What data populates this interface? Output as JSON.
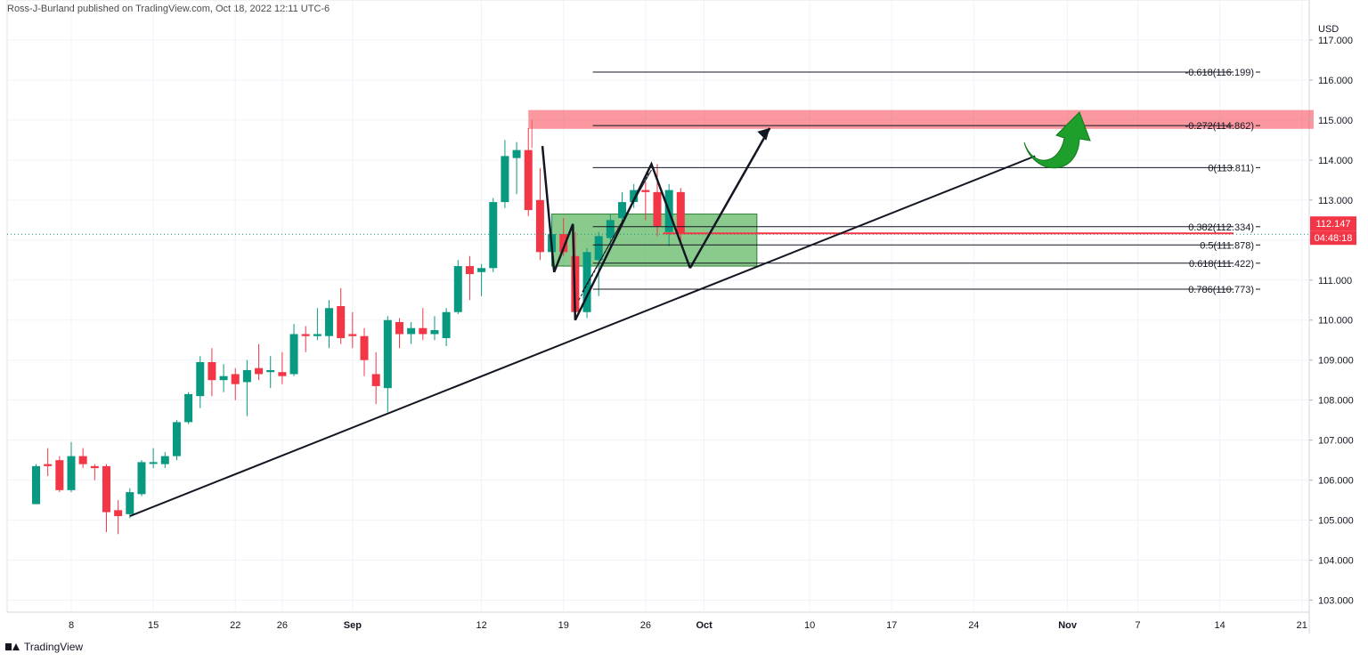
{
  "header": {
    "publisher_text": "Ross-J-Burland published on TradingView.com, Oct 18, 2022 12:11 UTC-6"
  },
  "footer": {
    "brand": "TradingView"
  },
  "chart_data": {
    "type": "candlestick",
    "currency_label": "USD",
    "ylim": [
      102.7,
      117.6
    ],
    "y_ticks": [
      "117.000",
      "116.000",
      "115.000",
      "114.000",
      "113.000",
      "112.000",
      "111.000",
      "110.000",
      "109.000",
      "108.000",
      "107.000",
      "106.000",
      "105.000",
      "104.000",
      "103.000"
    ],
    "x_ticks": [
      {
        "label": "8",
        "day": 0
      },
      {
        "label": "15",
        "day": 7
      },
      {
        "label": "22",
        "day": 14
      },
      {
        "label": "26",
        "day": 18
      },
      {
        "label": "Sep",
        "day": 24
      },
      {
        "label": "12",
        "day": 35
      },
      {
        "label": "19",
        "day": 42
      },
      {
        "label": "26",
        "day": 49
      },
      {
        "label": "Oct",
        "day": 54
      },
      {
        "label": "10",
        "day": 63
      },
      {
        "label": "17",
        "day": 70
      },
      {
        "label": "24",
        "day": 77
      },
      {
        "label": "Nov",
        "day": 85
      },
      {
        "label": "7",
        "day": 91
      },
      {
        "label": "14",
        "day": 98
      },
      {
        "label": "21",
        "day": 105
      }
    ],
    "candles": [
      {
        "d": -3,
        "o": 105.4,
        "h": 106.4,
        "l": 105.4,
        "c": 106.35
      },
      {
        "d": -2,
        "o": 106.4,
        "h": 106.8,
        "l": 106.1,
        "c": 106.35
      },
      {
        "d": -1,
        "o": 106.5,
        "h": 106.6,
        "l": 105.7,
        "c": 105.75
      },
      {
        "d": 0,
        "o": 105.75,
        "h": 106.95,
        "l": 105.7,
        "c": 106.6
      },
      {
        "d": 1,
        "o": 106.6,
        "h": 106.8,
        "l": 106.3,
        "c": 106.4
      },
      {
        "d": 2,
        "o": 106.35,
        "h": 106.4,
        "l": 106.0,
        "c": 106.3
      },
      {
        "d": 3,
        "o": 106.35,
        "h": 106.4,
        "l": 104.7,
        "c": 105.2
      },
      {
        "d": 4,
        "o": 105.25,
        "h": 105.5,
        "l": 104.65,
        "c": 105.1
      },
      {
        "d": 5,
        "o": 105.15,
        "h": 105.8,
        "l": 105.05,
        "c": 105.7
      },
      {
        "d": 6,
        "o": 105.65,
        "h": 106.5,
        "l": 105.6,
        "c": 106.45
      },
      {
        "d": 7,
        "o": 106.45,
        "h": 106.8,
        "l": 106.3,
        "c": 106.45
      },
      {
        "d": 8,
        "o": 106.4,
        "h": 106.7,
        "l": 106.3,
        "c": 106.6
      },
      {
        "d": 9,
        "o": 106.6,
        "h": 107.5,
        "l": 106.5,
        "c": 107.45
      },
      {
        "d": 10,
        "o": 107.45,
        "h": 108.2,
        "l": 107.4,
        "c": 108.15
      },
      {
        "d": 11,
        "o": 108.1,
        "h": 109.1,
        "l": 107.8,
        "c": 108.95
      },
      {
        "d": 12,
        "o": 108.95,
        "h": 109.3,
        "l": 108.1,
        "c": 108.5
      },
      {
        "d": 13,
        "o": 108.5,
        "h": 108.9,
        "l": 108.2,
        "c": 108.6
      },
      {
        "d": 14,
        "o": 108.65,
        "h": 108.8,
        "l": 108.0,
        "c": 108.4
      },
      {
        "d": 15,
        "o": 108.45,
        "h": 109.0,
        "l": 107.6,
        "c": 108.75
      },
      {
        "d": 16,
        "o": 108.8,
        "h": 109.4,
        "l": 108.5,
        "c": 108.65
      },
      {
        "d": 17,
        "o": 108.7,
        "h": 109.1,
        "l": 108.3,
        "c": 108.75
      },
      {
        "d": 18,
        "o": 108.7,
        "h": 109.2,
        "l": 108.4,
        "c": 108.6
      },
      {
        "d": 19,
        "o": 108.65,
        "h": 109.9,
        "l": 108.6,
        "c": 109.65
      },
      {
        "d": 20,
        "o": 109.65,
        "h": 109.85,
        "l": 109.2,
        "c": 109.6
      },
      {
        "d": 21,
        "o": 109.6,
        "h": 110.3,
        "l": 109.5,
        "c": 109.65
      },
      {
        "d": 22,
        "o": 109.6,
        "h": 110.5,
        "l": 109.3,
        "c": 110.3
      },
      {
        "d": 23,
        "o": 110.35,
        "h": 110.8,
        "l": 109.4,
        "c": 109.55
      },
      {
        "d": 24,
        "o": 109.65,
        "h": 110.2,
        "l": 109.3,
        "c": 109.6
      },
      {
        "d": 25,
        "o": 109.6,
        "h": 109.8,
        "l": 108.6,
        "c": 109.0
      },
      {
        "d": 26,
        "o": 108.65,
        "h": 109.2,
        "l": 107.9,
        "c": 108.35
      },
      {
        "d": 27,
        "o": 108.3,
        "h": 110.1,
        "l": 107.7,
        "c": 110.0
      },
      {
        "d": 28,
        "o": 109.95,
        "h": 110.05,
        "l": 109.3,
        "c": 109.65
      },
      {
        "d": 29,
        "o": 109.65,
        "h": 109.95,
        "l": 109.4,
        "c": 109.8
      },
      {
        "d": 30,
        "o": 109.8,
        "h": 110.3,
        "l": 109.5,
        "c": 109.65
      },
      {
        "d": 31,
        "o": 109.65,
        "h": 110.1,
        "l": 109.5,
        "c": 109.75
      },
      {
        "d": 32,
        "o": 109.55,
        "h": 110.3,
        "l": 109.35,
        "c": 110.2
      },
      {
        "d": 33,
        "o": 110.2,
        "h": 111.5,
        "l": 110.15,
        "c": 111.35
      },
      {
        "d": 34,
        "o": 111.35,
        "h": 111.6,
        "l": 110.5,
        "c": 111.15
      },
      {
        "d": 35,
        "o": 111.2,
        "h": 111.4,
        "l": 110.6,
        "c": 111.3
      },
      {
        "d": 36,
        "o": 111.3,
        "h": 113.05,
        "l": 111.2,
        "c": 112.95
      },
      {
        "d": 37,
        "o": 112.95,
        "h": 114.5,
        "l": 112.8,
        "c": 114.1
      },
      {
        "d": 38,
        "o": 114.05,
        "h": 114.45,
        "l": 113.15,
        "c": 114.25
      },
      {
        "d": 39,
        "o": 114.25,
        "h": 114.8,
        "l": 112.6,
        "c": 112.75
      },
      {
        "d": 40,
        "o": 113.0,
        "h": 113.8,
        "l": 111.5,
        "c": 111.7
      },
      {
        "d": 41,
        "o": 111.7,
        "h": 112.6,
        "l": 111.4,
        "c": 112.15
      },
      {
        "d": 42,
        "o": 112.15,
        "h": 112.55,
        "l": 111.6,
        "c": 111.7
      },
      {
        "d": 43,
        "o": 111.6,
        "h": 112.2,
        "l": 110.0,
        "c": 110.2
      },
      {
        "d": 44,
        "o": 110.2,
        "h": 111.8,
        "l": 110.05,
        "c": 111.7
      },
      {
        "d": 45,
        "o": 111.5,
        "h": 112.2,
        "l": 110.6,
        "c": 112.1
      },
      {
        "d": 46,
        "o": 112.05,
        "h": 112.65,
        "l": 111.75,
        "c": 112.5
      },
      {
        "d": 47,
        "o": 112.55,
        "h": 113.2,
        "l": 112.45,
        "c": 112.95
      },
      {
        "d": 48,
        "o": 112.95,
        "h": 113.4,
        "l": 112.8,
        "c": 113.25
      },
      {
        "d": 49,
        "o": 113.25,
        "h": 113.45,
        "l": 112.5,
        "c": 113.2
      },
      {
        "d": 50,
        "o": 113.2,
        "h": 113.9,
        "l": 112.1,
        "c": 112.35
      },
      {
        "d": 51,
        "o": 112.2,
        "h": 113.4,
        "l": 111.85,
        "c": 113.25
      },
      {
        "d": 52,
        "o": 113.2,
        "h": 113.3,
        "l": 111.9,
        "c": 112.15
      }
    ],
    "current_price": {
      "value": "112.147",
      "countdown": "04:48:18",
      "y": 112.147
    },
    "fib_levels": [
      {
        "label": "-0.618(116.199)",
        "y": 116.199
      },
      {
        "label": "-0.272(114.862)",
        "y": 114.862
      },
      {
        "label": "0(113.811)",
        "y": 113.811
      },
      {
        "label": "0.382(112.334)",
        "y": 112.334
      },
      {
        "label": "0.5(111.878)",
        "y": 111.878
      },
      {
        "label": "0.618(111.422)",
        "y": 111.422
      },
      {
        "label": "0.786(110.773)",
        "y": 110.773
      }
    ],
    "zones": [
      {
        "name": "resistance-zone",
        "color": "#f7525f",
        "x0": 39.0,
        "x1": 106.0,
        "y0": 114.78,
        "y1": 115.25
      },
      {
        "name": "support-zone",
        "color": "#4caf50",
        "x0": 41.0,
        "x1": 58.5,
        "y0": 111.35,
        "y1": 112.65
      }
    ],
    "trendline": {
      "p1": [
        5,
        105.1
      ],
      "p2": [
        64,
        114.1
      ]
    },
    "colors": {
      "up": "#089981",
      "down": "#f23645",
      "price": "#f23645",
      "fib": "#131722"
    }
  }
}
